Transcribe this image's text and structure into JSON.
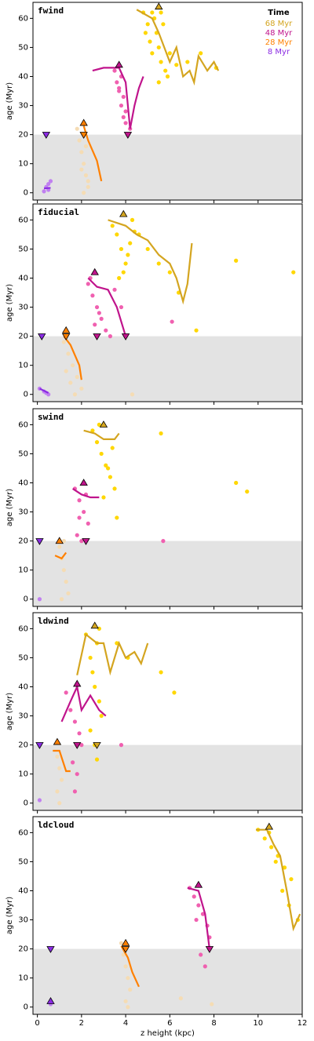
{
  "chart_data": [
    {
      "type": "scatter",
      "label": "fwind",
      "ylabel": "age (Myr)",
      "xlim": [
        -0.2,
        12
      ],
      "ylim": [
        -2.5,
        65.5
      ],
      "xticks": [
        0,
        2,
        4,
        6,
        8,
        10,
        12
      ],
      "yticks": [
        0,
        10,
        20,
        30,
        40,
        50,
        60
      ],
      "shade_ymax": 20,
      "legend_title": "Time",
      "series": [
        {
          "name": "68 Myr",
          "color": "#d4a520",
          "point_color": "#ffd700",
          "x": [
            4.8,
            5.0,
            5.1,
            5.2,
            5.3,
            5.4,
            5.5,
            5.6,
            5.7,
            5.8,
            5.9,
            6.0,
            5.2,
            5.6,
            6.3,
            6.8,
            7.4,
            8.1,
            4.9,
            5.5
          ],
          "y": [
            62,
            58,
            52,
            48,
            60,
            55,
            50,
            45,
            58,
            42,
            40,
            48,
            62,
            62,
            44,
            45,
            48,
            43,
            55,
            38
          ],
          "line_x": [
            4.5,
            5.2,
            5.5,
            6.0,
            6.3,
            6.6,
            6.9,
            7.1,
            7.3,
            7.7,
            8.0,
            8.2
          ],
          "line_y": [
            63,
            60,
            55,
            45,
            50,
            40,
            42,
            38,
            47,
            42,
            45,
            42
          ],
          "markers": [
            {
              "x": 5.5,
              "y": 64,
              "shape": "up"
            }
          ]
        },
        {
          "name": "48 Myr",
          "color": "#c0148c",
          "point_color": "#f060b0",
          "x": [
            3.5,
            3.6,
            3.7,
            3.8,
            3.9,
            4.0,
            4.1,
            3.8,
            3.9,
            4.0,
            3.7,
            4.2
          ],
          "y": [
            42,
            38,
            35,
            30,
            26,
            24,
            20,
            40,
            33,
            28,
            36,
            22
          ],
          "line_x": [
            2.5,
            3.0,
            3.7,
            4.0,
            4.2,
            4.4,
            4.6,
            4.8
          ],
          "line_y": [
            42,
            43,
            43,
            38,
            22,
            30,
            36,
            40
          ],
          "markers": [
            {
              "x": 3.7,
              "y": 44,
              "shape": "up"
            },
            {
              "x": 4.1,
              "y": 20,
              "shape": "down"
            }
          ]
        },
        {
          "name": "28 Myr",
          "color": "#ff8000",
          "point_color": "#f5dcb4",
          "x": [
            1.8,
            1.9,
            2.0,
            2.1,
            2.2,
            2.3,
            2.0,
            2.1,
            2.2,
            2.3
          ],
          "y": [
            22,
            18,
            14,
            10,
            6,
            2,
            8,
            0,
            16,
            4
          ],
          "line_x": [
            2.1,
            2.3,
            2.7,
            2.9
          ],
          "line_y": [
            23,
            18,
            11,
            4
          ],
          "markers": [
            {
              "x": 2.1,
              "y": 24,
              "shape": "up"
            },
            {
              "x": 2.1,
              "y": 20,
              "shape": "down"
            }
          ]
        },
        {
          "name": "8 Myr",
          "color": "#8a2be2",
          "point_color": "#c080f0",
          "x": [
            0.3,
            0.4,
            0.5,
            0.6,
            0.5
          ],
          "y": [
            0.5,
            2,
            3,
            4,
            1
          ],
          "line_x": [
            0.3,
            0.6
          ],
          "line_y": [
            1.5,
            1.7
          ],
          "markers": [
            {
              "x": 0.4,
              "y": 20,
              "shape": "down"
            }
          ]
        }
      ]
    },
    {
      "type": "scatter",
      "label": "fiducial",
      "ylabel": "age (Myr)",
      "xlim": [
        -0.2,
        12
      ],
      "ylim": [
        -2.5,
        65.5
      ],
      "xticks": [
        0,
        2,
        4,
        6,
        8,
        10,
        12
      ],
      "yticks": [
        0,
        10,
        20,
        30,
        40,
        50,
        60
      ],
      "shade_ymax": 20,
      "series": [
        {
          "color": "#d4a520",
          "point_color": "#ffd700",
          "x": [
            3.4,
            3.6,
            3.8,
            4.0,
            4.2,
            4.4,
            3.7,
            3.9,
            4.1,
            4.6,
            5.0,
            5.5,
            6.0,
            6.4,
            7.2,
            9.0,
            11.6,
            4.3
          ],
          "y": [
            58,
            55,
            50,
            45,
            52,
            56,
            40,
            42,
            48,
            55,
            50,
            45,
            42,
            35,
            22,
            46,
            42,
            60
          ],
          "line_x": [
            3.2,
            4.0,
            4.5,
            5.0,
            5.5,
            6.0,
            6.3,
            6.6,
            6.8,
            7.0
          ],
          "line_y": [
            60,
            58,
            55,
            53,
            48,
            45,
            40,
            32,
            38,
            52
          ],
          "markers": [
            {
              "x": 3.9,
              "y": 62,
              "shape": "up"
            }
          ]
        },
        {
          "color": "#c0148c",
          "point_color": "#f060b0",
          "x": [
            2.3,
            2.5,
            2.7,
            2.9,
            3.1,
            3.3,
            3.5,
            3.8,
            4.0,
            2.4,
            2.6,
            2.8,
            6.1
          ],
          "y": [
            38,
            34,
            30,
            26,
            22,
            20,
            36,
            30,
            20,
            40,
            24,
            28,
            25
          ],
          "line_x": [
            2.3,
            2.7,
            3.2,
            3.6,
            4.0
          ],
          "line_y": [
            40,
            37,
            36,
            30,
            20
          ],
          "markers": [
            {
              "x": 2.6,
              "y": 42,
              "shape": "up"
            },
            {
              "x": 2.7,
              "y": 20,
              "shape": "down"
            },
            {
              "x": 4.0,
              "y": 20,
              "shape": "down"
            }
          ]
        },
        {
          "color": "#ff8000",
          "point_color": "#f5dcb4",
          "x": [
            1.2,
            1.4,
            1.6,
            1.8,
            2.0,
            1.3,
            1.7,
            1.5,
            4.3
          ],
          "y": [
            18,
            14,
            10,
            6,
            2,
            8,
            0,
            4,
            0
          ],
          "line_x": [
            1.2,
            1.5,
            1.9,
            2.0
          ],
          "line_y": [
            20,
            17,
            10,
            5
          ],
          "markers": [
            {
              "x": 1.3,
              "y": 22,
              "shape": "up"
            },
            {
              "x": 1.3,
              "y": 20,
              "shape": "down"
            }
          ]
        },
        {
          "color": "#8a2be2",
          "point_color": "#c080f0",
          "x": [
            0.1,
            0.3,
            0.5,
            0.4
          ],
          "y": [
            2,
            1,
            0,
            0.5
          ],
          "line_x": [
            0.1,
            0.5
          ],
          "line_y": [
            2,
            0.5
          ],
          "markers": [
            {
              "x": 0.2,
              "y": 20,
              "shape": "down"
            }
          ]
        }
      ]
    },
    {
      "type": "scatter",
      "label": "swind",
      "ylabel": "age (Myr)",
      "xlim": [
        -0.2,
        12
      ],
      "ylim": [
        -2.5,
        65.5
      ],
      "xticks": [
        0,
        2,
        4,
        6,
        8,
        10,
        12
      ],
      "yticks": [
        0,
        10,
        20,
        30,
        40,
        50,
        60
      ],
      "shade_ymax": 20,
      "series": [
        {
          "color": "#d4a520",
          "point_color": "#ffd700",
          "x": [
            2.5,
            2.7,
            2.9,
            3.1,
            3.3,
            3.5,
            2.8,
            3.0,
            3.2,
            3.4,
            3.6,
            5.6,
            9.0,
            9.5
          ],
          "y": [
            58,
            54,
            50,
            46,
            42,
            38,
            60,
            35,
            45,
            52,
            28,
            57,
            40,
            37
          ],
          "line_x": [
            2.1,
            2.6,
            3.0,
            3.5,
            3.7
          ],
          "line_y": [
            58,
            57,
            55,
            55,
            57
          ],
          "markers": [
            {
              "x": 3.0,
              "y": 60,
              "shape": "up"
            }
          ]
        },
        {
          "color": "#c0148c",
          "point_color": "#f060b0",
          "x": [
            1.7,
            1.9,
            2.1,
            2.3,
            1.8,
            2.0,
            2.2,
            1.9,
            5.7
          ],
          "y": [
            38,
            34,
            30,
            26,
            22,
            20,
            36,
            28,
            20
          ],
          "line_x": [
            1.6,
            2.0,
            2.4,
            2.8
          ],
          "line_y": [
            38,
            36,
            35,
            35
          ],
          "markers": [
            {
              "x": 2.1,
              "y": 40,
              "shape": "up"
            },
            {
              "x": 2.2,
              "y": 20,
              "shape": "down"
            }
          ]
        },
        {
          "color": "#ff8000",
          "point_color": "#f5dcb4",
          "x": [
            1.0,
            1.1,
            1.2,
            1.3,
            1.4,
            1.1,
            1.2
          ],
          "y": [
            18,
            14,
            10,
            6,
            2,
            0,
            20
          ],
          "line_x": [
            0.8,
            1.1,
            1.3
          ],
          "line_y": [
            15,
            14,
            16
          ],
          "markers": [
            {
              "x": 1.0,
              "y": 20,
              "shape": "up"
            }
          ]
        },
        {
          "color": "#8a2be2",
          "point_color": "#c080f0",
          "x": [
            0.1
          ],
          "y": [
            0
          ],
          "line_x": [],
          "line_y": [],
          "markers": [
            {
              "x": 0.1,
              "y": 20,
              "shape": "down"
            }
          ]
        }
      ]
    },
    {
      "type": "scatter",
      "label": "ldwind",
      "ylabel": "age (Myr)",
      "xlim": [
        -0.2,
        12
      ],
      "ylim": [
        -2.5,
        65.5
      ],
      "xticks": [
        0,
        2,
        4,
        6,
        8,
        10,
        12
      ],
      "yticks": [
        0,
        10,
        20,
        30,
        40,
        50,
        60
      ],
      "shade_ymax": 20,
      "series": [
        {
          "color": "#d4a520",
          "point_color": "#ffd700",
          "x": [
            2.2,
            2.4,
            2.5,
            2.6,
            2.7,
            2.8,
            2.9,
            2.4,
            2.6,
            2.8,
            3.6,
            4.1,
            5.6,
            6.2,
            2.7
          ],
          "y": [
            58,
            50,
            45,
            40,
            55,
            35,
            30,
            25,
            20,
            60,
            55,
            50,
            45,
            38,
            15
          ],
          "line_x": [
            1.8,
            2.2,
            2.7,
            3.0,
            3.3,
            3.7,
            4.0,
            4.4,
            4.7,
            5.0
          ],
          "line_y": [
            44,
            58,
            55,
            55,
            45,
            55,
            50,
            52,
            48,
            55
          ],
          "markers": [
            {
              "x": 2.6,
              "y": 61,
              "shape": "up"
            },
            {
              "x": 2.7,
              "y": 20,
              "shape": "down"
            }
          ]
        },
        {
          "color": "#c0148c",
          "point_color": "#f060b0",
          "x": [
            1.3,
            1.5,
            1.7,
            1.9,
            2.0,
            1.6,
            1.8,
            1.7,
            3.8
          ],
          "y": [
            38,
            32,
            28,
            24,
            20,
            14,
            10,
            4,
            20
          ],
          "line_x": [
            1.1,
            1.5,
            1.8,
            2.0,
            2.4,
            2.8,
            3.1
          ],
          "line_y": [
            28,
            35,
            40,
            32,
            37,
            32,
            30
          ],
          "markers": [
            {
              "x": 1.8,
              "y": 41,
              "shape": "up"
            },
            {
              "x": 1.8,
              "y": 20,
              "shape": "down"
            }
          ]
        },
        {
          "color": "#ff8000",
          "point_color": "#f5dcb4",
          "x": [
            0.9,
            1.0,
            1.1,
            0.9,
            1.0
          ],
          "y": [
            16,
            12,
            8,
            4,
            0
          ],
          "line_x": [
            0.7,
            1.0,
            1.3,
            1.5
          ],
          "line_y": [
            18,
            18,
            11,
            11
          ],
          "markers": [
            {
              "x": 0.9,
              "y": 21,
              "shape": "up"
            }
          ]
        },
        {
          "color": "#8a2be2",
          "point_color": "#c080f0",
          "x": [
            0.1
          ],
          "y": [
            1
          ],
          "line_x": [],
          "line_y": [],
          "markers": [
            {
              "x": 0.1,
              "y": 20,
              "shape": "down"
            }
          ]
        }
      ]
    },
    {
      "type": "scatter",
      "label": "ldcloud",
      "ylabel": "age (Myr)",
      "xlabel": "z height (kpc)",
      "xlim": [
        -0.2,
        12
      ],
      "ylim": [
        -2.5,
        65.5
      ],
      "xticks": [
        0,
        2,
        4,
        6,
        8,
        10,
        12
      ],
      "yticks": [
        0,
        10,
        20,
        30,
        40,
        50,
        60
      ],
      "shade_ymax": 20,
      "series": [
        {
          "color": "#d4a520",
          "point_color": "#ffd700",
          "x": [
            10.0,
            10.3,
            10.6,
            10.9,
            11.2,
            11.5,
            10.5,
            10.8,
            11.1,
            11.4,
            11.8
          ],
          "y": [
            61,
            58,
            55,
            52,
            48,
            44,
            60,
            50,
            40,
            35,
            30
          ],
          "line_x": [
            9.9,
            10.4,
            10.7,
            11.0,
            11.3,
            11.6,
            11.9
          ],
          "line_y": [
            61,
            61,
            56,
            52,
            40,
            27,
            32
          ],
          "markers": [
            {
              "x": 10.5,
              "y": 62,
              "shape": "up"
            }
          ]
        },
        {
          "color": "#c0148c",
          "point_color": "#f060b0",
          "x": [
            6.9,
            7.1,
            7.3,
            7.5,
            7.7,
            7.8,
            7.2,
            7.4,
            7.6
          ],
          "y": [
            41,
            38,
            35,
            32,
            28,
            24,
            30,
            18,
            14
          ],
          "line_x": [
            6.8,
            7.3,
            7.6,
            7.8
          ],
          "line_y": [
            41,
            40,
            32,
            20
          ],
          "markers": [
            {
              "x": 7.3,
              "y": 42,
              "shape": "up"
            },
            {
              "x": 7.8,
              "y": 20,
              "shape": "down"
            }
          ]
        },
        {
          "color": "#ff8000",
          "point_color": "#f5dcb4",
          "x": [
            3.8,
            3.9,
            4.0,
            4.1,
            4.2,
            4.0,
            4.1,
            6.5,
            7.9
          ],
          "y": [
            22,
            18,
            14,
            10,
            6,
            2,
            0,
            3,
            1
          ],
          "line_x": [
            3.8,
            4.1,
            4.3,
            4.6
          ],
          "line_y": [
            21,
            17,
            12,
            7
          ],
          "markers": [
            {
              "x": 4.0,
              "y": 22,
              "shape": "up"
            },
            {
              "x": 4.0,
              "y": 20,
              "shape": "down"
            }
          ]
        },
        {
          "color": "#8a2be2",
          "point_color": "#c080f0",
          "x": [
            0.6,
            0.6
          ],
          "y": [
            1,
            2
          ],
          "line_x": [],
          "line_y": [],
          "markers": [
            {
              "x": 0.6,
              "y": 2,
              "shape": "up"
            },
            {
              "x": 0.6,
              "y": 20,
              "shape": "down"
            }
          ]
        }
      ]
    }
  ]
}
